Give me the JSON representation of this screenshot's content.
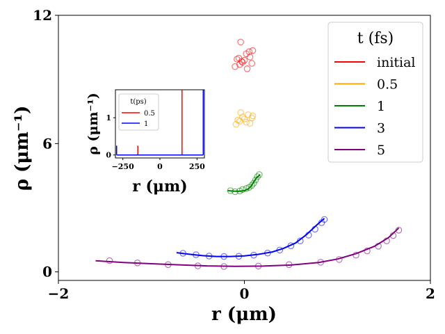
{
  "chart_data": [
    {
      "type": "scatter",
      "xlabel": "r (μm)",
      "ylabel": "ρ (μm⁻¹)",
      "xlim": [
        -2,
        2
      ],
      "ylim": [
        -0.4,
        12
      ],
      "xticks": [
        "−2",
        "0",
        "2"
      ],
      "yticks": [
        "0",
        "6",
        "12"
      ],
      "legend": {
        "title": "t (fs)",
        "placement": "top-right"
      },
      "series": [
        {
          "name": "initial",
          "color": "#ff0000",
          "markers": [
            [
              -0.04,
              10.75
            ],
            [
              -0.08,
              9.95
            ],
            [
              0.06,
              10.05
            ],
            [
              -0.03,
              9.85
            ],
            [
              0.02,
              10.2
            ],
            [
              -0.1,
              9.6
            ],
            [
              0.08,
              9.75
            ],
            [
              0.05,
              10.3
            ],
            [
              -0.05,
              9.7
            ],
            [
              0.0,
              9.9
            ],
            [
              0.03,
              9.5
            ],
            [
              -0.06,
              10.0
            ],
            [
              0.09,
              10.35
            ],
            [
              -0.02,
              9.8
            ]
          ]
        },
        {
          "name": "0.5",
          "color": "#ffa500",
          "markers": [
            [
              -0.04,
              7.45
            ],
            [
              0.08,
              7.2
            ],
            [
              -0.07,
              7.1
            ],
            [
              0.02,
              7.0
            ],
            [
              -0.02,
              7.25
            ],
            [
              0.06,
              6.95
            ],
            [
              -0.09,
              6.9
            ],
            [
              0.04,
              7.35
            ],
            [
              0.0,
              7.15
            ],
            [
              -0.05,
              7.05
            ],
            [
              0.09,
              7.3
            ]
          ]
        },
        {
          "name": "1",
          "color": "#008000",
          "curve": [
            [
              -0.18,
              3.8
            ],
            [
              -0.12,
              3.78
            ],
            [
              -0.06,
              3.77
            ],
            [
              0.0,
              3.8
            ],
            [
              0.04,
              3.88
            ],
            [
              0.07,
              4.0
            ],
            [
              0.1,
              4.2
            ],
            [
              0.13,
              4.4
            ],
            [
              0.17,
              4.55
            ]
          ],
          "markers": [
            [
              -0.15,
              3.8
            ],
            [
              -0.1,
              3.75
            ],
            [
              -0.05,
              3.78
            ],
            [
              -0.02,
              3.85
            ],
            [
              0.02,
              3.9
            ],
            [
              0.05,
              3.95
            ],
            [
              0.08,
              4.05
            ],
            [
              0.1,
              4.15
            ],
            [
              0.12,
              4.3
            ],
            [
              0.14,
              4.45
            ],
            [
              0.16,
              4.55
            ]
          ]
        },
        {
          "name": "3",
          "color": "#0000ff",
          "curve": [
            [
              -0.73,
              0.9
            ],
            [
              -0.6,
              0.83
            ],
            [
              -0.45,
              0.76
            ],
            [
              -0.3,
              0.72
            ],
            [
              -0.15,
              0.72
            ],
            [
              0.0,
              0.75
            ],
            [
              0.15,
              0.82
            ],
            [
              0.3,
              0.93
            ],
            [
              0.42,
              1.1
            ],
            [
              0.55,
              1.35
            ],
            [
              0.67,
              1.75
            ],
            [
              0.78,
              2.2
            ],
            [
              0.86,
              2.5
            ]
          ],
          "markers": [
            [
              -0.66,
              0.87
            ],
            [
              -0.52,
              0.8
            ],
            [
              -0.38,
              0.74
            ],
            [
              -0.22,
              0.72
            ],
            [
              -0.06,
              0.73
            ],
            [
              0.1,
              0.78
            ],
            [
              0.25,
              0.88
            ],
            [
              0.38,
              1.02
            ],
            [
              0.5,
              1.22
            ],
            [
              0.6,
              1.45
            ],
            [
              0.69,
              1.72
            ],
            [
              0.76,
              2.0
            ],
            [
              0.83,
              2.3
            ],
            [
              0.86,
              2.45
            ]
          ]
        },
        {
          "name": "5",
          "color": "#800080",
          "curve": [
            [
              -1.6,
              0.52
            ],
            [
              -1.3,
              0.44
            ],
            [
              -1.0,
              0.38
            ],
            [
              -0.7,
              0.33
            ],
            [
              -0.4,
              0.28
            ],
            [
              -0.1,
              0.26
            ],
            [
              0.2,
              0.27
            ],
            [
              0.5,
              0.32
            ],
            [
              0.8,
              0.44
            ],
            [
              1.0,
              0.6
            ],
            [
              1.2,
              0.85
            ],
            [
              1.4,
              1.2
            ],
            [
              1.55,
              1.6
            ],
            [
              1.66,
              2.05
            ]
          ],
          "markers": [
            [
              -1.45,
              0.52
            ],
            [
              -1.15,
              0.42
            ],
            [
              -0.82,
              0.34
            ],
            [
              -0.5,
              0.28
            ],
            [
              -0.22,
              0.25
            ],
            [
              0.15,
              0.27
            ],
            [
              0.48,
              0.34
            ],
            [
              0.82,
              0.45
            ],
            [
              1.02,
              0.58
            ],
            [
              1.2,
              0.78
            ],
            [
              1.32,
              0.98
            ],
            [
              1.44,
              1.2
            ],
            [
              1.53,
              1.45
            ],
            [
              1.6,
              1.7
            ],
            [
              1.66,
              1.95
            ]
          ]
        }
      ]
    },
    {
      "type": "line",
      "xlabel": "r (μm)",
      "ylabel": "ρ (μm⁻¹)",
      "xlim": [
        -300,
        300
      ],
      "ylim": [
        -0.08,
        1.75
      ],
      "xticks": [
        "−250",
        "0",
        "250"
      ],
      "yticks": [
        "0",
        "1"
      ],
      "legend": {
        "title": "t(ps)",
        "placement": "top-left"
      },
      "series": [
        {
          "name": "0.5",
          "color": "#ff0000",
          "segments": [
            [
              [
                -149,
                0.0
              ],
              [
                -149,
                0.25
              ]
            ],
            [
              [
                149,
                0.0
              ],
              [
                149,
                1.75
              ]
            ]
          ],
          "baseline": [
            [
              -149,
              0.0
            ],
            [
              149,
              0.0
            ]
          ]
        },
        {
          "name": "1",
          "color": "#0000ff",
          "segments": [
            [
              [
                -292,
                0.0
              ],
              [
                -292,
                0.25
              ]
            ],
            [
              [
                292,
                0.0
              ],
              [
                292,
                1.75
              ]
            ]
          ],
          "baseline": [
            [
              -292,
              0.0
            ],
            [
              292,
              0.0
            ]
          ]
        }
      ]
    }
  ]
}
